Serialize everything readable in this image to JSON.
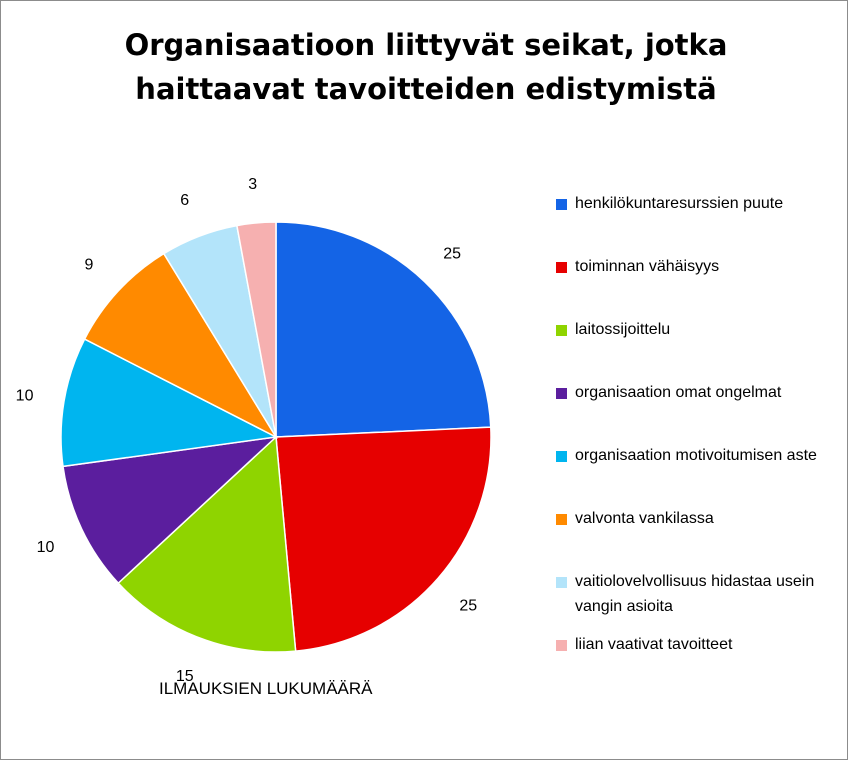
{
  "chart_data": {
    "type": "pie",
    "title": "Organisaatioon liittyvät seikat, jotka haittaavat tavoitteiden edistymistä",
    "xlabel": "ILMAUKSIEN LUKUMÄÄRÄ",
    "legend_position": "right",
    "slices": [
      {
        "label": "henkilökuntaresurssien puute",
        "value": 25,
        "color": "#1464e6"
      },
      {
        "label": "toiminnan vähäisyys",
        "value": 25,
        "color": "#e60000"
      },
      {
        "label": "laitossijoittelu",
        "value": 15,
        "color": "#8fd400"
      },
      {
        "label": "organisaation omat ongelmat",
        "value": 10,
        "color": "#5b1e9e"
      },
      {
        "label": "organisaation motivoitumisen aste",
        "value": 10,
        "color": "#00b5ef"
      },
      {
        "label": "valvonta vankilassa",
        "value": 9,
        "color": "#ff8a00"
      },
      {
        "label": "vaitiolovelvollisuus hidastaa usein vangin asioita",
        "value": 6,
        "color": "#b3e4fa"
      },
      {
        "label": "liian vaativat tavoitteet",
        "value": 3,
        "color": "#f6b0b0"
      }
    ]
  }
}
